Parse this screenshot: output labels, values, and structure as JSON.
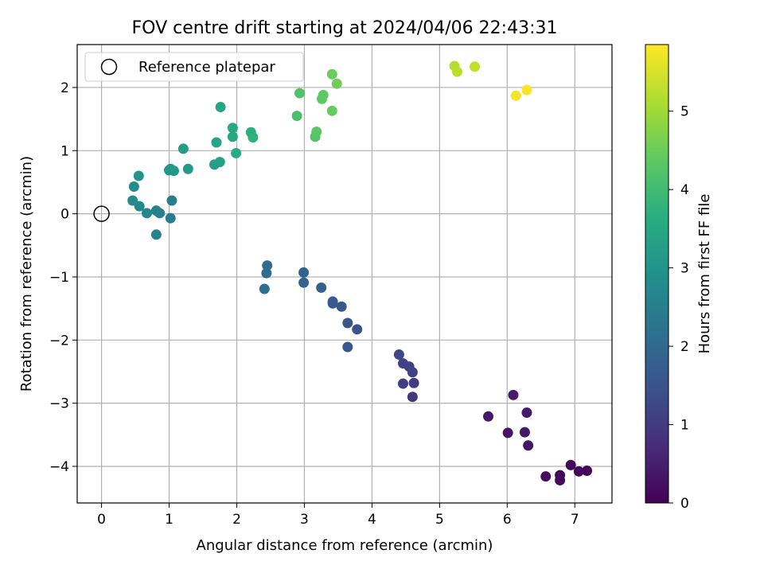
{
  "chart_data": {
    "type": "scatter",
    "title": "FOV centre drift starting at 2024/04/06 22:43:31",
    "xlabel": "Angular distance from reference (arcmin)",
    "ylabel": "Rotation from reference (arcmin)",
    "xlim": [
      -0.36,
      7.55
    ],
    "ylim": [
      -4.58,
      2.68
    ],
    "xticks": [
      0,
      1,
      2,
      3,
      4,
      5,
      6,
      7
    ],
    "yticks": [
      -4,
      -3,
      -2,
      -1,
      0,
      1,
      2
    ],
    "grid": true,
    "legend": {
      "position": "top-left",
      "entries": [
        "Reference platepar"
      ]
    },
    "reference_point": {
      "x": 0,
      "y": 0
    },
    "colorbar": {
      "label": "Hours from first FF file",
      "min": 0,
      "max": 5.85,
      "ticks": [
        0,
        1,
        2,
        3,
        4,
        5
      ],
      "colormap": "viridis"
    },
    "points": [
      {
        "x": 7.18,
        "y": -4.07,
        "h": 0.05
      },
      {
        "x": 7.06,
        "y": -4.08,
        "h": 0.08
      },
      {
        "x": 6.94,
        "y": -3.98,
        "h": 0.1
      },
      {
        "x": 6.78,
        "y": -4.14,
        "h": 0.12
      },
      {
        "x": 6.78,
        "y": -4.22,
        "h": 0.15
      },
      {
        "x": 6.57,
        "y": -4.16,
        "h": 0.18
      },
      {
        "x": 6.31,
        "y": -3.67,
        "h": 0.35
      },
      {
        "x": 6.26,
        "y": -3.46,
        "h": 0.38
      },
      {
        "x": 6.29,
        "y": -3.15,
        "h": 0.42
      },
      {
        "x": 6.09,
        "y": -2.87,
        "h": 0.45
      },
      {
        "x": 6.01,
        "y": -3.47,
        "h": 0.32
      },
      {
        "x": 5.72,
        "y": -3.21,
        "h": 0.4
      },
      {
        "x": 4.6,
        "y": -2.9,
        "h": 0.95
      },
      {
        "x": 4.62,
        "y": -2.68,
        "h": 1.0
      },
      {
        "x": 4.46,
        "y": -2.69,
        "h": 1.05
      },
      {
        "x": 4.6,
        "y": -2.51,
        "h": 1.1
      },
      {
        "x": 4.55,
        "y": -2.42,
        "h": 1.12
      },
      {
        "x": 4.46,
        "y": -2.37,
        "h": 1.15
      },
      {
        "x": 4.4,
        "y": -2.23,
        "h": 1.2
      },
      {
        "x": 3.78,
        "y": -1.83,
        "h": 1.5
      },
      {
        "x": 3.64,
        "y": -1.73,
        "h": 1.55
      },
      {
        "x": 3.64,
        "y": -2.11,
        "h": 1.58
      },
      {
        "x": 3.55,
        "y": -1.47,
        "h": 1.6
      },
      {
        "x": 3.42,
        "y": -1.39,
        "h": 1.65
      },
      {
        "x": 3.42,
        "y": -1.42,
        "h": 1.67
      },
      {
        "x": 3.25,
        "y": -1.17,
        "h": 1.75
      },
      {
        "x": 2.99,
        "y": -0.93,
        "h": 1.85
      },
      {
        "x": 2.99,
        "y": -1.09,
        "h": 1.88
      },
      {
        "x": 2.45,
        "y": -0.82,
        "h": 2.05
      },
      {
        "x": 2.44,
        "y": -0.94,
        "h": 2.08
      },
      {
        "x": 2.41,
        "y": -1.19,
        "h": 2.1
      },
      {
        "x": 1.02,
        "y": -0.07,
        "h": 2.4
      },
      {
        "x": 1.04,
        "y": 0.21,
        "h": 2.5
      },
      {
        "x": 0.86,
        "y": 0.01,
        "h": 2.55
      },
      {
        "x": 0.81,
        "y": 0.05,
        "h": 2.58
      },
      {
        "x": 0.81,
        "y": -0.33,
        "h": 2.6
      },
      {
        "x": 0.67,
        "y": 0.01,
        "h": 2.65
      },
      {
        "x": 0.56,
        "y": 0.12,
        "h": 2.7
      },
      {
        "x": 0.46,
        "y": 0.21,
        "h": 2.75
      },
      {
        "x": 0.48,
        "y": 0.43,
        "h": 2.85
      },
      {
        "x": 0.55,
        "y": 0.6,
        "h": 3.0
      },
      {
        "x": 1.0,
        "y": 0.69,
        "h": 3.05
      },
      {
        "x": 1.02,
        "y": 0.71,
        "h": 3.08
      },
      {
        "x": 1.07,
        "y": 0.68,
        "h": 3.1
      },
      {
        "x": 1.28,
        "y": 0.71,
        "h": 3.15
      },
      {
        "x": 1.21,
        "y": 1.03,
        "h": 3.2
      },
      {
        "x": 1.67,
        "y": 0.78,
        "h": 3.3
      },
      {
        "x": 1.75,
        "y": 0.82,
        "h": 3.35
      },
      {
        "x": 1.7,
        "y": 1.13,
        "h": 3.4
      },
      {
        "x": 1.94,
        "y": 1.22,
        "h": 3.5
      },
      {
        "x": 1.94,
        "y": 1.36,
        "h": 3.55
      },
      {
        "x": 1.99,
        "y": 0.96,
        "h": 3.6
      },
      {
        "x": 1.76,
        "y": 1.69,
        "h": 3.45
      },
      {
        "x": 2.21,
        "y": 1.29,
        "h": 3.65
      },
      {
        "x": 2.24,
        "y": 1.21,
        "h": 3.7
      },
      {
        "x": 2.89,
        "y": 1.55,
        "h": 4.15
      },
      {
        "x": 2.93,
        "y": 1.91,
        "h": 4.2
      },
      {
        "x": 3.16,
        "y": 1.22,
        "h": 4.25
      },
      {
        "x": 3.18,
        "y": 1.3,
        "h": 4.3
      },
      {
        "x": 3.26,
        "y": 1.82,
        "h": 4.35
      },
      {
        "x": 3.28,
        "y": 1.88,
        "h": 4.4
      },
      {
        "x": 3.41,
        "y": 1.63,
        "h": 4.45
      },
      {
        "x": 3.41,
        "y": 2.21,
        "h": 4.5
      },
      {
        "x": 3.48,
        "y": 2.06,
        "h": 4.55
      },
      {
        "x": 5.22,
        "y": 2.34,
        "h": 5.2
      },
      {
        "x": 5.26,
        "y": 2.25,
        "h": 5.25
      },
      {
        "x": 5.52,
        "y": 2.33,
        "h": 5.3
      },
      {
        "x": 6.13,
        "y": 1.87,
        "h": 5.75
      },
      {
        "x": 6.29,
        "y": 1.96,
        "h": 5.8
      }
    ]
  }
}
